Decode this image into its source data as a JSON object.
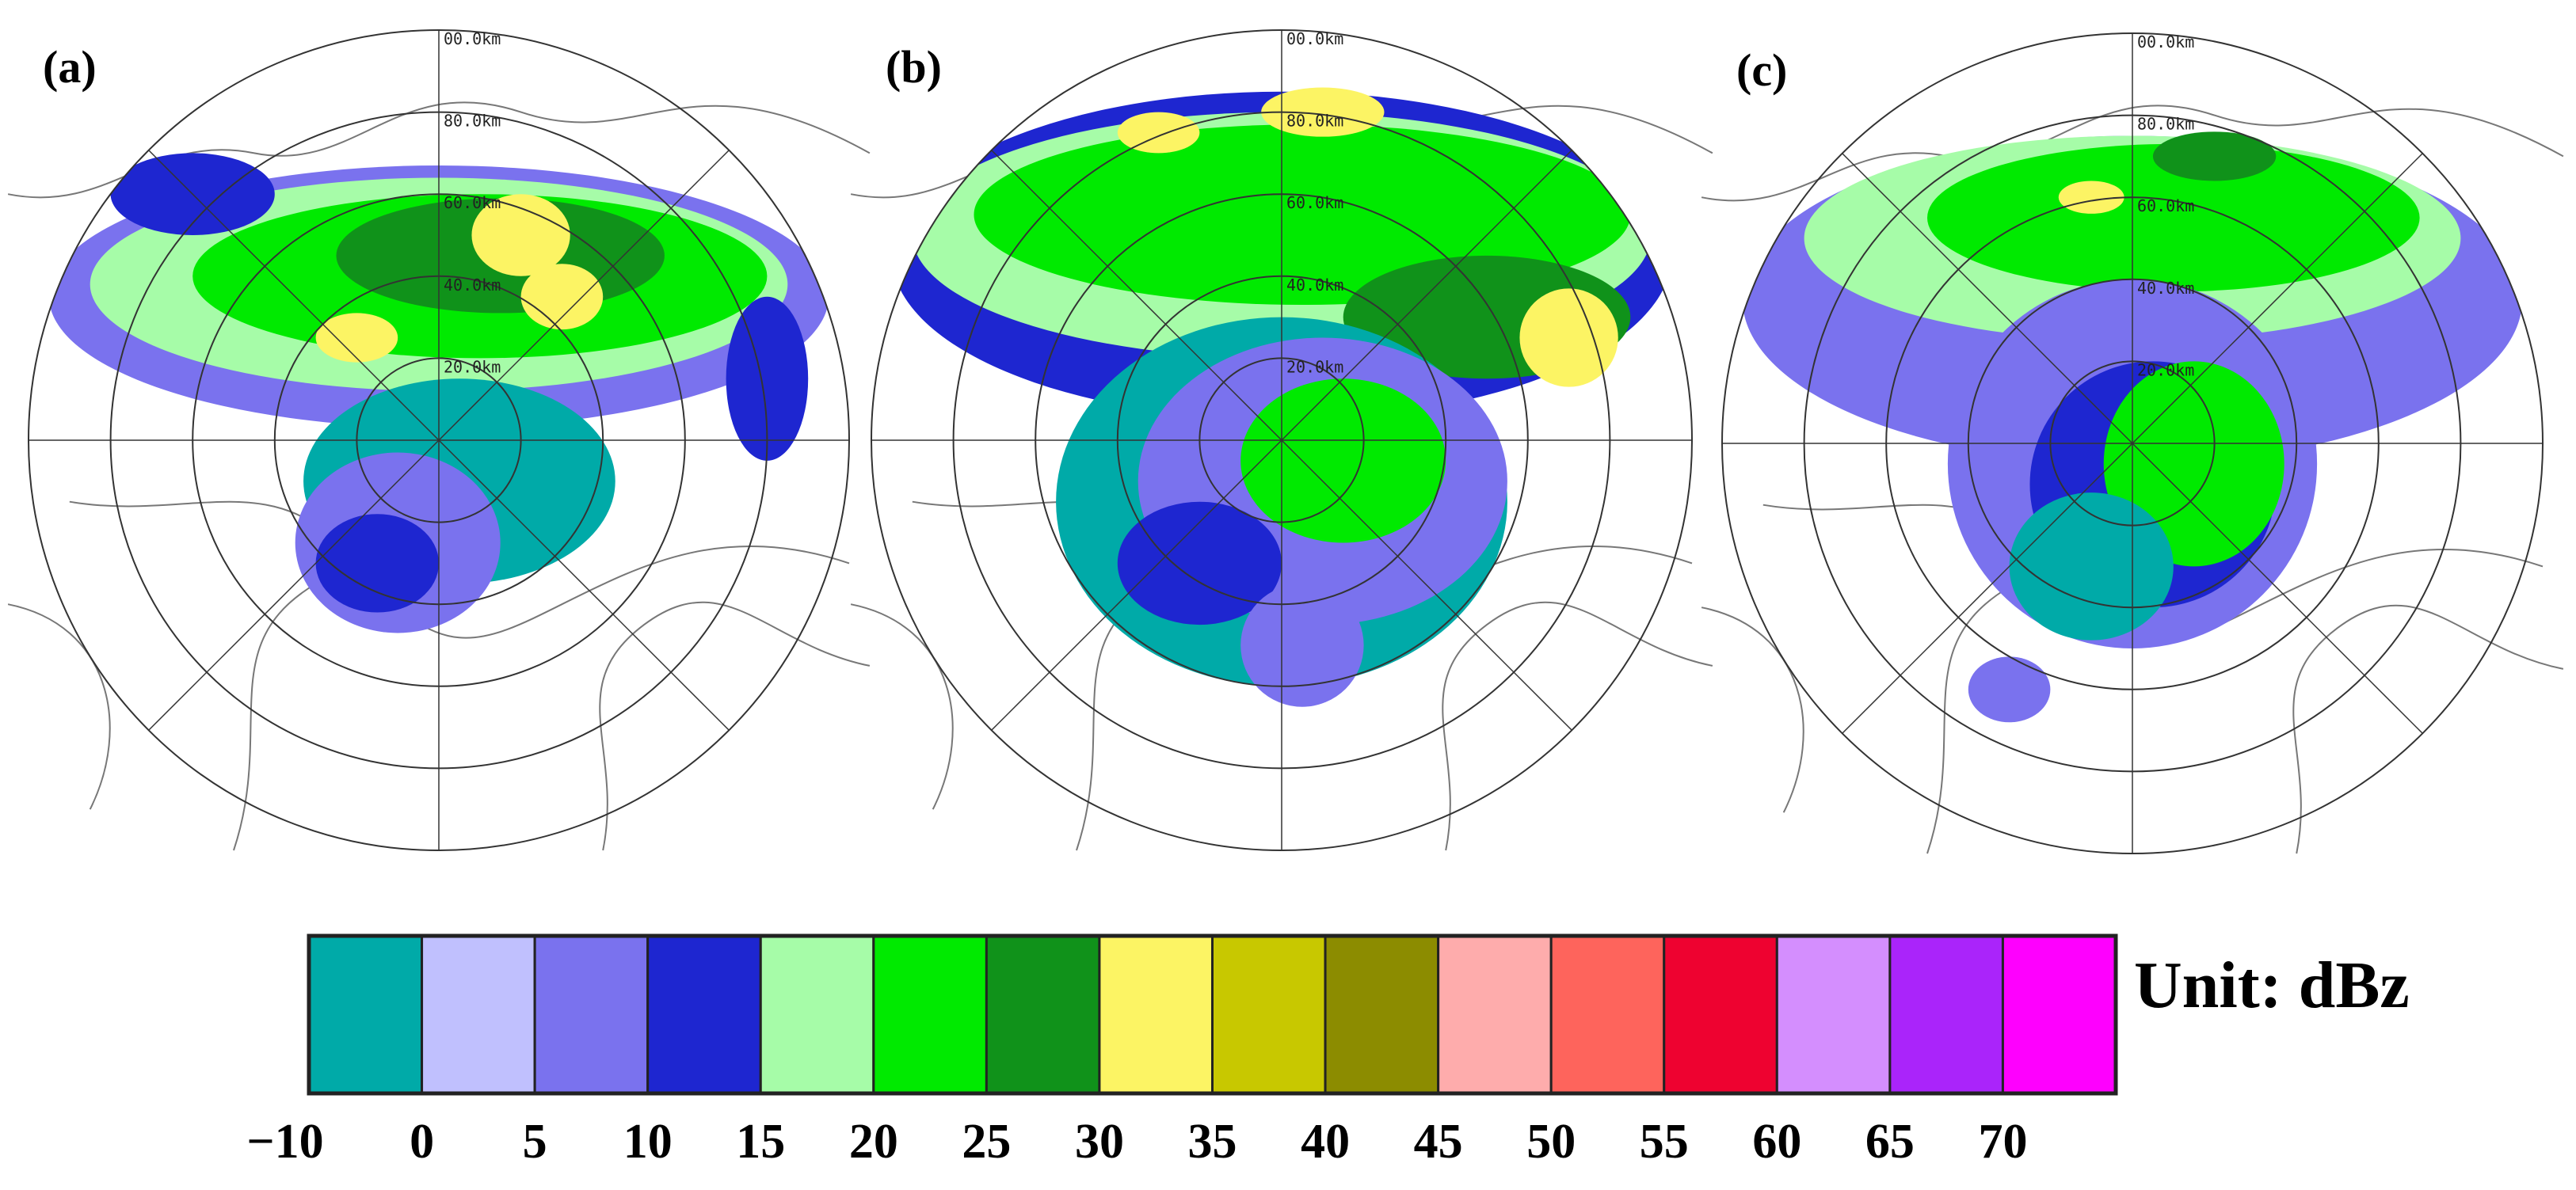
{
  "panels": [
    {
      "label": "(a)",
      "rings": [
        "20.0km",
        "40.0km",
        "60.0km",
        "80.0km",
        "00.0km"
      ]
    },
    {
      "label": "(b)",
      "rings": [
        "20.0km",
        "40.0km",
        "60.0km",
        "80.0km",
        "00.0km"
      ]
    },
    {
      "label": "(c)",
      "rings": [
        "20.0km",
        "40.0km",
        "60.0km",
        "80.0km",
        "00.0km"
      ]
    }
  ],
  "colorbar": {
    "colors": [
      "#00aaa8",
      "#c0c0fe",
      "#7a72ee",
      "#1e26d0",
      "#a6fca8",
      "#00ea00",
      "#10921a",
      "#fcf464",
      "#c8c800",
      "#8c8c00",
      "#feacac",
      "#fe645c",
      "#ee0230",
      "#d48efe",
      "#aa24fa",
      "#fe00fe"
    ],
    "ticks": [
      {
        "value": -10,
        "label": "−10"
      },
      0,
      5,
      10,
      15,
      20,
      25,
      30,
      35,
      40,
      45,
      50,
      55,
      60,
      65,
      70
    ],
    "unit": "Unit: dBz"
  }
}
